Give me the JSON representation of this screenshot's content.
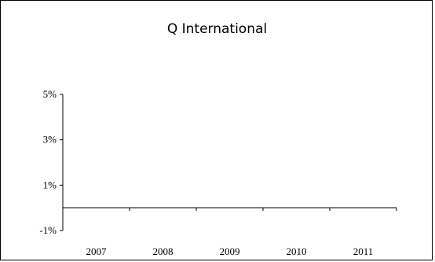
{
  "chart_data": {
    "type": "bar",
    "title": "Q International",
    "categories": [
      "2007",
      "2008",
      "2009",
      "2010",
      "2011"
    ],
    "series": [
      {
        "values": [
          null,
          null,
          null,
          null,
          null
        ]
      }
    ],
    "yticks": [
      "5%",
      "3%",
      "1%",
      "-1%"
    ],
    "ylim": [
      -1,
      5
    ],
    "grid": false
  }
}
